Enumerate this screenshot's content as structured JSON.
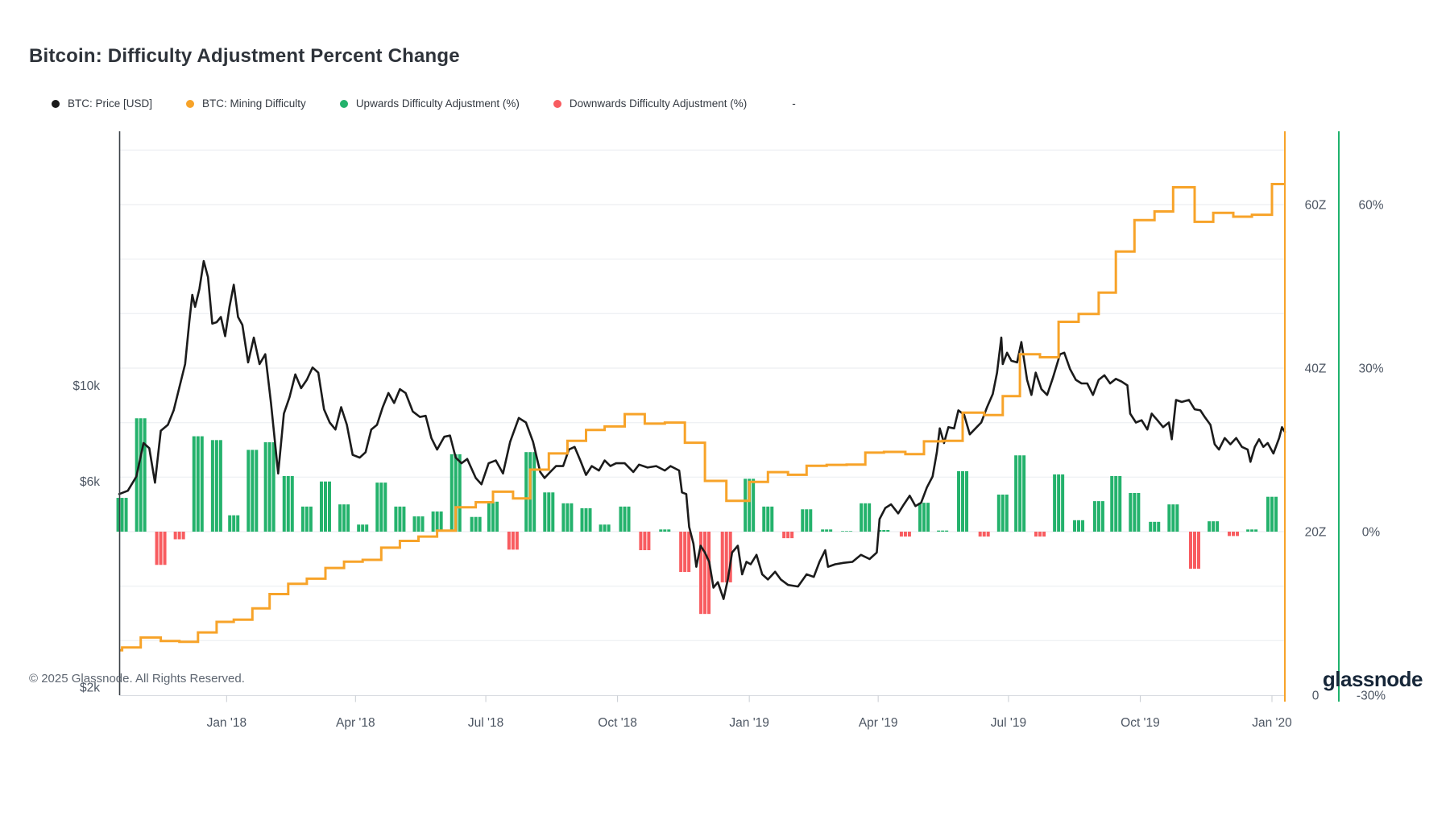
{
  "title": "Bitcoin: Difficulty Adjustment Percent Change",
  "legend": {
    "items": [
      {
        "label": "BTC: Price [USD]",
        "color": "#1b1b1b"
      },
      {
        "label": "BTC: Mining Difficulty",
        "color": "#f7a329"
      },
      {
        "label": "Upwards Difficulty Adjustment (%)",
        "color": "#24b26c"
      },
      {
        "label": "Downwards Difficulty Adjustment (%)",
        "color": "#f85c60"
      }
    ],
    "extra": "-"
  },
  "footer": {
    "copyright": "© 2025 Glassnode. All Rights Reserved.",
    "brand": "glassnode"
  },
  "axes": {
    "price": {
      "scale": "log",
      "unit": "USD",
      "ticks": [
        {
          "label": "$10k",
          "value": 10000
        },
        {
          "label": "$6k",
          "value": 6000
        },
        {
          "label": "$2k",
          "value": 2000
        }
      ]
    },
    "difficulty": {
      "scale": "linear",
      "unit": "zettahash",
      "ticks": [
        {
          "label": "60Z",
          "value": 60
        },
        {
          "label": "40Z",
          "value": 40
        },
        {
          "label": "20Z",
          "value": 20
        },
        {
          "label": "0",
          "value": 0
        }
      ]
    },
    "percent": {
      "scale": "linear",
      "unit": "%",
      "ticks": [
        {
          "label": "60%",
          "value": 60
        },
        {
          "label": "30%",
          "value": 30
        },
        {
          "label": "0%",
          "value": 0
        },
        {
          "label": "-30%",
          "value": -30
        }
      ]
    },
    "x_ticks": [
      {
        "label": "Jan '18",
        "date": "2018-01-01"
      },
      {
        "label": "Apr '18",
        "date": "2018-04-01"
      },
      {
        "label": "Jul '18",
        "date": "2018-07-01"
      },
      {
        "label": "Oct '18",
        "date": "2018-10-01"
      },
      {
        "label": "Jan '19",
        "date": "2019-01-01"
      },
      {
        "label": "Apr '19",
        "date": "2019-04-01"
      },
      {
        "label": "Jul '19",
        "date": "2019-07-01"
      },
      {
        "label": "Oct '19",
        "date": "2019-10-01"
      },
      {
        "label": "Jan '20",
        "date": "2020-01-01"
      }
    ]
  },
  "chart_data": {
    "type": "mixed",
    "x_range": [
      "2017-10-18",
      "2020-01-10"
    ],
    "grid": {
      "horizontal_percent_step": 10,
      "range": [
        -20,
        70
      ]
    },
    "series": [
      {
        "name": "BTC: Price [USD]",
        "type": "line",
        "axis": "price",
        "color": "#1b1b1b"
      },
      {
        "name": "BTC: Mining Difficulty",
        "type": "step",
        "axis": "difficulty",
        "color": "#f7a329",
        "initial_value_zetta": 5.5,
        "note": "stepwise; each step multiplies by (1 + adjustment/100)"
      },
      {
        "name": "Upwards Difficulty Adjustment (%)",
        "type": "bar",
        "axis": "percent",
        "color": "#24b26c"
      },
      {
        "name": "Downwards Difficulty Adjustment (%)",
        "type": "bar",
        "axis": "percent",
        "color": "#f85c60"
      }
    ],
    "adjustments": [
      [
        "2017-10-20",
        6.2
      ],
      [
        "2017-11-02",
        20.8
      ],
      [
        "2017-11-16",
        -6.1
      ],
      [
        "2017-11-29",
        -1.4
      ],
      [
        "2017-12-12",
        17.5
      ],
      [
        "2017-12-25",
        16.8
      ],
      [
        "2018-01-06",
        3.0
      ],
      [
        "2018-01-19",
        15.0
      ],
      [
        "2018-01-31",
        16.4
      ],
      [
        "2018-02-13",
        10.2
      ],
      [
        "2018-02-26",
        4.6
      ],
      [
        "2018-03-11",
        9.2
      ],
      [
        "2018-03-24",
        5.0
      ],
      [
        "2018-04-06",
        1.3
      ],
      [
        "2018-04-19",
        9.0
      ],
      [
        "2018-05-02",
        4.6
      ],
      [
        "2018-05-15",
        2.8
      ],
      [
        "2018-05-28",
        3.7
      ],
      [
        "2018-06-10",
        14.2
      ],
      [
        "2018-06-24",
        2.7
      ],
      [
        "2018-07-06",
        5.5
      ],
      [
        "2018-07-20",
        -3.3
      ],
      [
        "2018-08-01",
        14.6
      ],
      [
        "2018-08-14",
        7.2
      ],
      [
        "2018-08-27",
        5.2
      ],
      [
        "2018-09-09",
        4.3
      ],
      [
        "2018-09-22",
        1.3
      ],
      [
        "2018-10-06",
        4.6
      ],
      [
        "2018-10-20",
        -3.4
      ],
      [
        "2018-11-03",
        0.4
      ],
      [
        "2018-11-17",
        -7.4
      ],
      [
        "2018-12-01",
        -15.1
      ],
      [
        "2018-12-16",
        -9.3
      ],
      [
        "2019-01-01",
        9.7
      ],
      [
        "2019-01-14",
        4.6
      ],
      [
        "2019-01-28",
        -1.2
      ],
      [
        "2019-02-10",
        4.1
      ],
      [
        "2019-02-24",
        0.4
      ],
      [
        "2019-03-10",
        0.1
      ],
      [
        "2019-03-23",
        5.2
      ],
      [
        "2019-04-05",
        0.3
      ],
      [
        "2019-04-20",
        -0.9
      ],
      [
        "2019-05-03",
        5.3
      ],
      [
        "2019-05-16",
        0.2
      ],
      [
        "2019-05-30",
        11.1
      ],
      [
        "2019-06-14",
        -0.9
      ],
      [
        "2019-06-27",
        6.8
      ],
      [
        "2019-07-09",
        14.0
      ],
      [
        "2019-07-23",
        -0.9
      ],
      [
        "2019-08-05",
        10.5
      ],
      [
        "2019-08-19",
        2.1
      ],
      [
        "2019-09-02",
        5.6
      ],
      [
        "2019-09-14",
        10.2
      ],
      [
        "2019-09-27",
        7.1
      ],
      [
        "2019-10-11",
        1.8
      ],
      [
        "2019-10-24",
        5.0
      ],
      [
        "2019-11-08",
        -6.8
      ],
      [
        "2019-11-21",
        1.9
      ],
      [
        "2019-12-05",
        -0.8
      ],
      [
        "2019-12-18",
        0.4
      ],
      [
        "2020-01-01",
        6.4
      ]
    ],
    "price_usd": [
      [
        "2017-10-18",
        5600
      ],
      [
        "2017-10-24",
        5700
      ],
      [
        "2017-10-30",
        6150
      ],
      [
        "2017-11-04",
        7350
      ],
      [
        "2017-11-08",
        7150
      ],
      [
        "2017-11-12",
        5950
      ],
      [
        "2017-11-16",
        7850
      ],
      [
        "2017-11-21",
        8100
      ],
      [
        "2017-11-25",
        8750
      ],
      [
        "2017-11-29",
        9900
      ],
      [
        "2017-12-03",
        11200
      ],
      [
        "2017-12-06",
        14100
      ],
      [
        "2017-12-08",
        16200
      ],
      [
        "2017-12-10",
        15200
      ],
      [
        "2017-12-13",
        16700
      ],
      [
        "2017-12-16",
        19400
      ],
      [
        "2017-12-19",
        17800
      ],
      [
        "2017-12-22",
        13900
      ],
      [
        "2017-12-25",
        14000
      ],
      [
        "2017-12-28",
        14400
      ],
      [
        "2017-12-31",
        13000
      ],
      [
        "2018-01-03",
        15200
      ],
      [
        "2018-01-06",
        17100
      ],
      [
        "2018-01-09",
        14400
      ],
      [
        "2018-01-12",
        13800
      ],
      [
        "2018-01-16",
        11300
      ],
      [
        "2018-01-20",
        12900
      ],
      [
        "2018-01-24",
        11200
      ],
      [
        "2018-01-28",
        11800
      ],
      [
        "2018-02-01",
        9100
      ],
      [
        "2018-02-06",
        6250
      ],
      [
        "2018-02-10",
        8600
      ],
      [
        "2018-02-14",
        9400
      ],
      [
        "2018-02-18",
        10600
      ],
      [
        "2018-02-22",
        9850
      ],
      [
        "2018-02-26",
        10300
      ],
      [
        "2018-03-02",
        11000
      ],
      [
        "2018-03-06",
        10700
      ],
      [
        "2018-03-10",
        8800
      ],
      [
        "2018-03-14",
        8200
      ],
      [
        "2018-03-18",
        7900
      ],
      [
        "2018-03-22",
        8900
      ],
      [
        "2018-03-26",
        8100
      ],
      [
        "2018-03-30",
        6900
      ],
      [
        "2018-04-04",
        6800
      ],
      [
        "2018-04-08",
        7000
      ],
      [
        "2018-04-12",
        7900
      ],
      [
        "2018-04-16",
        8100
      ],
      [
        "2018-04-20",
        8900
      ],
      [
        "2018-04-24",
        9600
      ],
      [
        "2018-04-28",
        9100
      ],
      [
        "2018-05-02",
        9800
      ],
      [
        "2018-05-06",
        9600
      ],
      [
        "2018-05-11",
        8700
      ],
      [
        "2018-05-16",
        8450
      ],
      [
        "2018-05-20",
        8500
      ],
      [
        "2018-05-24",
        7550
      ],
      [
        "2018-05-28",
        7100
      ],
      [
        "2018-06-02",
        7600
      ],
      [
        "2018-06-06",
        7650
      ],
      [
        "2018-06-10",
        6800
      ],
      [
        "2018-06-14",
        6600
      ],
      [
        "2018-06-18",
        6750
      ],
      [
        "2018-06-24",
        6100
      ],
      [
        "2018-06-28",
        5900
      ],
      [
        "2018-07-03",
        6600
      ],
      [
        "2018-07-08",
        6700
      ],
      [
        "2018-07-13",
        6250
      ],
      [
        "2018-07-18",
        7400
      ],
      [
        "2018-07-24",
        8400
      ],
      [
        "2018-07-29",
        8200
      ],
      [
        "2018-08-03",
        7400
      ],
      [
        "2018-08-08",
        6300
      ],
      [
        "2018-08-11",
        6100
      ],
      [
        "2018-08-15",
        6300
      ],
      [
        "2018-08-19",
        6500
      ],
      [
        "2018-08-24",
        6500
      ],
      [
        "2018-08-28",
        7100
      ],
      [
        "2018-09-01",
        7200
      ],
      [
        "2018-09-05",
        6700
      ],
      [
        "2018-09-09",
        6200
      ],
      [
        "2018-09-13",
        6500
      ],
      [
        "2018-09-18",
        6350
      ],
      [
        "2018-09-22",
        6700
      ],
      [
        "2018-09-26",
        6500
      ],
      [
        "2018-09-30",
        6600
      ],
      [
        "2018-10-06",
        6600
      ],
      [
        "2018-10-12",
        6300
      ],
      [
        "2018-10-16",
        6550
      ],
      [
        "2018-10-22",
        6450
      ],
      [
        "2018-10-28",
        6500
      ],
      [
        "2018-11-03",
        6350
      ],
      [
        "2018-11-07",
        6500
      ],
      [
        "2018-11-13",
        6350
      ],
      [
        "2018-11-15",
        5650
      ],
      [
        "2018-11-18",
        5600
      ],
      [
        "2018-11-20",
        4700
      ],
      [
        "2018-11-23",
        4300
      ],
      [
        "2018-11-25",
        3800
      ],
      [
        "2018-11-28",
        4250
      ],
      [
        "2018-12-01",
        4100
      ],
      [
        "2018-12-04",
        3900
      ],
      [
        "2018-12-07",
        3400
      ],
      [
        "2018-12-10",
        3500
      ],
      [
        "2018-12-14",
        3200
      ],
      [
        "2018-12-17",
        3550
      ],
      [
        "2018-12-20",
        4100
      ],
      [
        "2018-12-24",
        4250
      ],
      [
        "2018-12-27",
        3650
      ],
      [
        "2018-12-30",
        3900
      ],
      [
        "2019-01-02",
        3850
      ],
      [
        "2019-01-06",
        4050
      ],
      [
        "2019-01-10",
        3650
      ],
      [
        "2019-01-14",
        3550
      ],
      [
        "2019-01-19",
        3700
      ],
      [
        "2019-01-23",
        3550
      ],
      [
        "2019-01-28",
        3450
      ],
      [
        "2019-02-04",
        3420
      ],
      [
        "2019-02-10",
        3650
      ],
      [
        "2019-02-15",
        3600
      ],
      [
        "2019-02-19",
        3900
      ],
      [
        "2019-02-23",
        4150
      ],
      [
        "2019-02-25",
        3800
      ],
      [
        "2019-03-02",
        3850
      ],
      [
        "2019-03-08",
        3880
      ],
      [
        "2019-03-14",
        3900
      ],
      [
        "2019-03-20",
        4050
      ],
      [
        "2019-03-26",
        3960
      ],
      [
        "2019-03-31",
        4100
      ],
      [
        "2019-04-02",
        4900
      ],
      [
        "2019-04-06",
        5200
      ],
      [
        "2019-04-10",
        5300
      ],
      [
        "2019-04-15",
        5050
      ],
      [
        "2019-04-19",
        5300
      ],
      [
        "2019-04-23",
        5550
      ],
      [
        "2019-04-27",
        5250
      ],
      [
        "2019-05-01",
        5350
      ],
      [
        "2019-05-05",
        5800
      ],
      [
        "2019-05-09",
        6150
      ],
      [
        "2019-05-12",
        7000
      ],
      [
        "2019-05-14",
        7950
      ],
      [
        "2019-05-17",
        7350
      ],
      [
        "2019-05-20",
        8000
      ],
      [
        "2019-05-24",
        7950
      ],
      [
        "2019-05-27",
        8750
      ],
      [
        "2019-05-31",
        8550
      ],
      [
        "2019-06-04",
        7700
      ],
      [
        "2019-06-08",
        7950
      ],
      [
        "2019-06-12",
        8200
      ],
      [
        "2019-06-16",
        8900
      ],
      [
        "2019-06-20",
        9550
      ],
      [
        "2019-06-23",
        10700
      ],
      [
        "2019-06-26",
        12900
      ],
      [
        "2019-06-27",
        11200
      ],
      [
        "2019-06-30",
        11900
      ],
      [
        "2019-07-03",
        11400
      ],
      [
        "2019-07-07",
        11300
      ],
      [
        "2019-07-10",
        12600
      ],
      [
        "2019-07-14",
        10300
      ],
      [
        "2019-07-17",
        9500
      ],
      [
        "2019-07-20",
        10700
      ],
      [
        "2019-07-24",
        9800
      ],
      [
        "2019-07-28",
        9500
      ],
      [
        "2019-08-01",
        10400
      ],
      [
        "2019-08-06",
        11800
      ],
      [
        "2019-08-09",
        11900
      ],
      [
        "2019-08-13",
        10900
      ],
      [
        "2019-08-17",
        10300
      ],
      [
        "2019-08-21",
        10100
      ],
      [
        "2019-08-25",
        10100
      ],
      [
        "2019-08-29",
        9500
      ],
      [
        "2019-09-02",
        10300
      ],
      [
        "2019-09-06",
        10550
      ],
      [
        "2019-09-10",
        10100
      ],
      [
        "2019-09-14",
        10350
      ],
      [
        "2019-09-18",
        10200
      ],
      [
        "2019-09-22",
        10000
      ],
      [
        "2019-09-24",
        8600
      ],
      [
        "2019-09-28",
        8200
      ],
      [
        "2019-10-02",
        8300
      ],
      [
        "2019-10-06",
        7900
      ],
      [
        "2019-10-09",
        8600
      ],
      [
        "2019-10-13",
        8300
      ],
      [
        "2019-10-17",
        8000
      ],
      [
        "2019-10-21",
        8200
      ],
      [
        "2019-10-23",
        7500
      ],
      [
        "2019-10-26",
        9250
      ],
      [
        "2019-10-30",
        9150
      ],
      [
        "2019-11-04",
        9250
      ],
      [
        "2019-11-08",
        8800
      ],
      [
        "2019-11-12",
        8750
      ],
      [
        "2019-11-15",
        8450
      ],
      [
        "2019-11-19",
        8100
      ],
      [
        "2019-11-22",
        7300
      ],
      [
        "2019-11-25",
        7100
      ],
      [
        "2019-11-29",
        7550
      ],
      [
        "2019-12-03",
        7300
      ],
      [
        "2019-12-07",
        7550
      ],
      [
        "2019-12-11",
        7200
      ],
      [
        "2019-12-15",
        7100
      ],
      [
        "2019-12-17",
        6650
      ],
      [
        "2019-12-20",
        7200
      ],
      [
        "2019-12-23",
        7500
      ],
      [
        "2019-12-26",
        7200
      ],
      [
        "2019-12-29",
        7350
      ],
      [
        "2020-01-02",
        6950
      ],
      [
        "2020-01-06",
        7550
      ],
      [
        "2020-01-08",
        8000
      ],
      [
        "2020-01-10",
        7800
      ]
    ]
  }
}
